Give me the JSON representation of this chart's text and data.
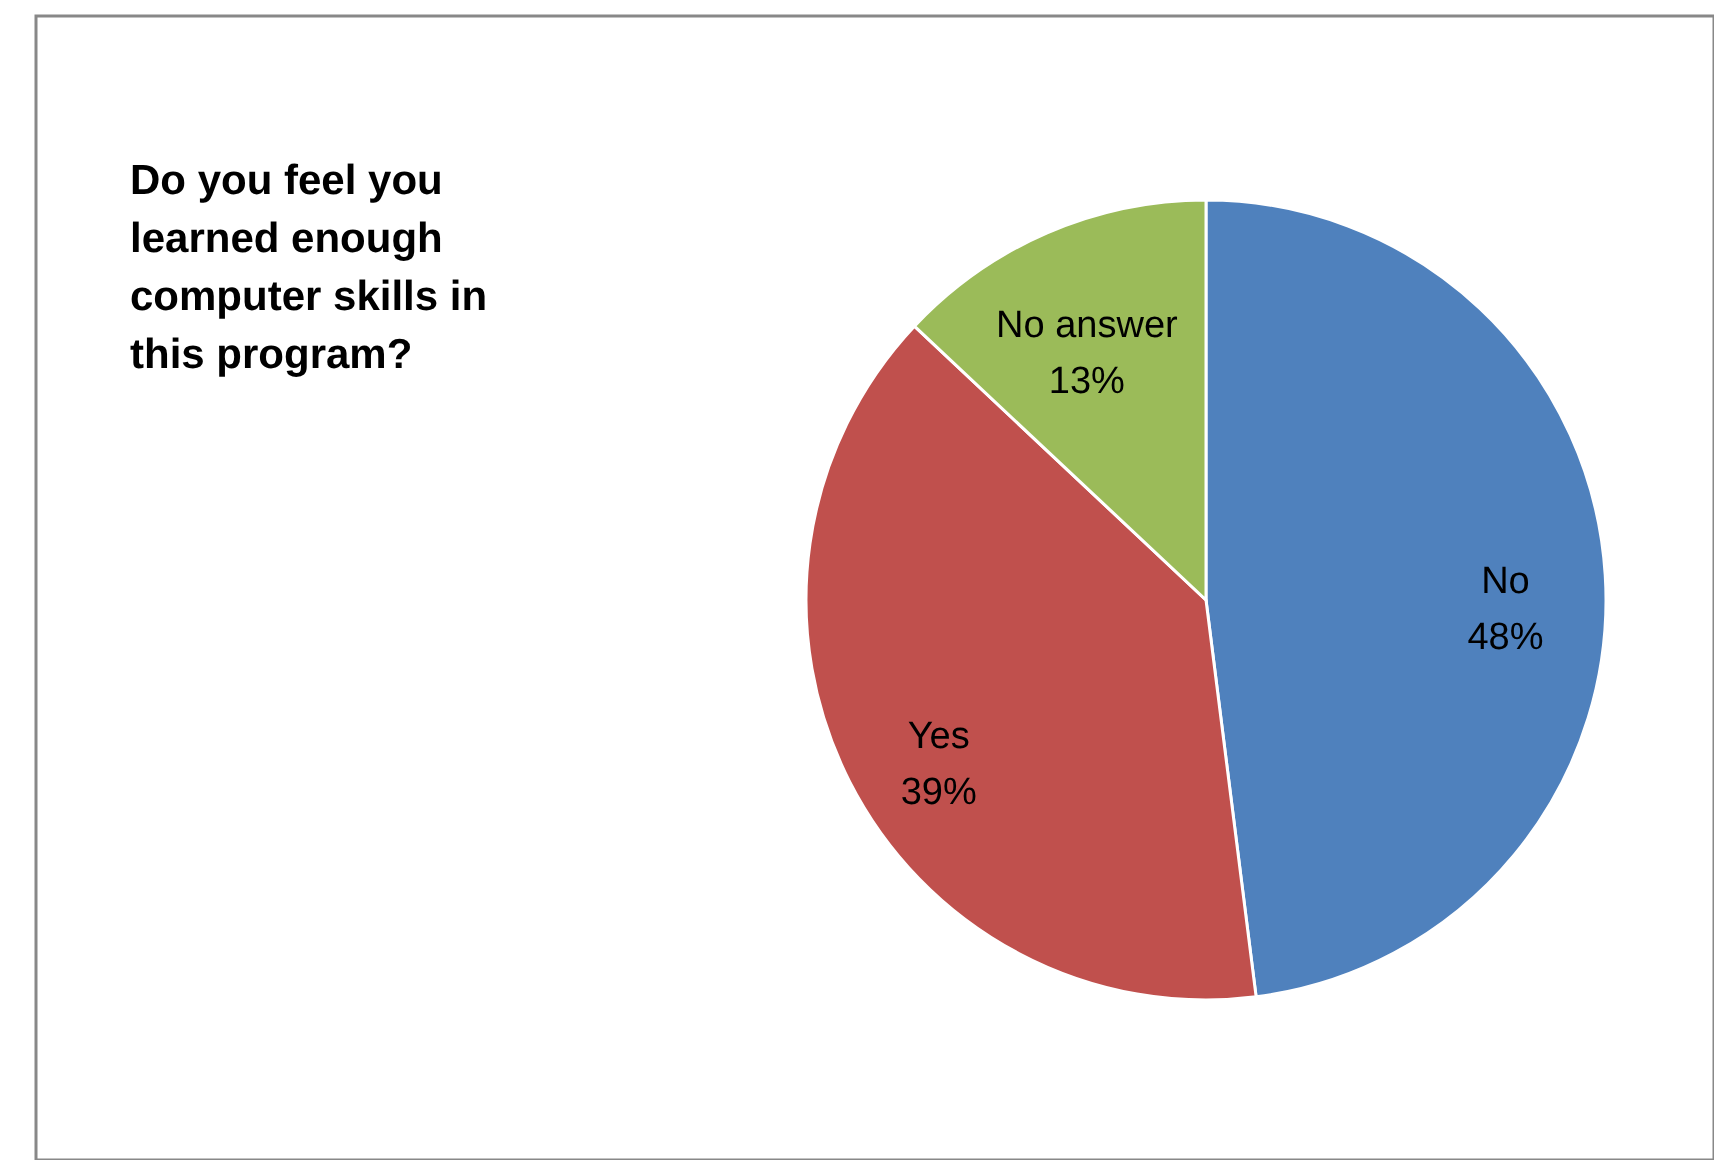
{
  "chart_data": {
    "type": "pie",
    "title": "Do you feel you learned enough computer skills in this program?",
    "categories": [
      "No",
      "Yes",
      "No answer"
    ],
    "values": [
      48,
      39,
      13
    ],
    "value_labels": [
      "48%",
      "39%",
      "13%"
    ],
    "colors": [
      "#4f81bd",
      "#c0504d",
      "#9bbb59"
    ]
  }
}
